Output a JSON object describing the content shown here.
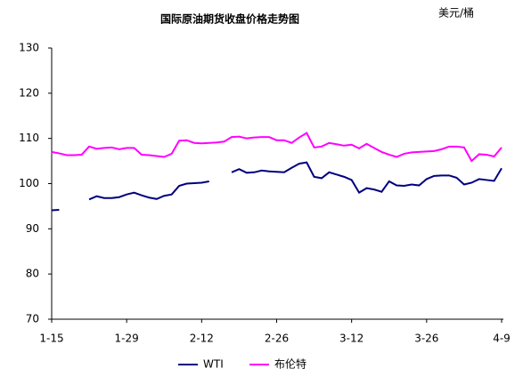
{
  "chart_data": {
    "type": "line",
    "title": "国际原油期货收盘价格走势图",
    "unit": "美元/桶",
    "categories": [
      "1-15",
      null,
      null,
      null,
      null,
      null,
      null,
      null,
      null,
      null,
      "1-29",
      null,
      null,
      null,
      null,
      null,
      null,
      null,
      null,
      null,
      "2-12",
      null,
      null,
      null,
      null,
      null,
      null,
      null,
      null,
      null,
      "2-26",
      null,
      null,
      null,
      null,
      null,
      null,
      null,
      null,
      null,
      "3-12",
      null,
      null,
      null,
      null,
      null,
      null,
      null,
      null,
      null,
      "3-26",
      null,
      null,
      null,
      null,
      null,
      null,
      null,
      null,
      null,
      "4-9"
    ],
    "series": [
      {
        "name": "WTI",
        "color": "#000080",
        "values": [
          94.1,
          94.2,
          null,
          null,
          null,
          96.5,
          97.2,
          96.8,
          96.8,
          97.0,
          97.6,
          98.0,
          97.4,
          96.9,
          96.6,
          97.3,
          97.6,
          99.5,
          100.0,
          100.1,
          100.2,
          100.5,
          null,
          null,
          102.5,
          103.2,
          102.4,
          102.5,
          102.9,
          102.7,
          102.6,
          102.5,
          103.5,
          104.4,
          104.7,
          101.5,
          101.2,
          102.5,
          102.0,
          101.5,
          100.8,
          98.0,
          99.0,
          98.7,
          98.2,
          100.5,
          99.6,
          99.5,
          99.8,
          99.6,
          101.0,
          101.7,
          101.8,
          101.8,
          101.3,
          99.8,
          100.2,
          101.0,
          100.8,
          100.6,
          103.4
        ]
      },
      {
        "name": "布伦特",
        "color": "#ff00ff",
        "values": [
          107.0,
          106.7,
          106.3,
          106.3,
          106.4,
          108.2,
          107.7,
          107.9,
          108.0,
          107.6,
          107.9,
          107.9,
          106.4,
          106.3,
          106.1,
          105.9,
          106.6,
          109.5,
          109.6,
          109.0,
          108.9,
          109.0,
          109.1,
          109.3,
          110.3,
          110.4,
          110.0,
          110.2,
          110.3,
          110.3,
          109.6,
          109.6,
          109.0,
          110.2,
          111.2,
          108.0,
          108.2,
          109.0,
          108.7,
          108.4,
          108.6,
          107.8,
          108.8,
          107.9,
          107.0,
          106.4,
          105.9,
          106.6,
          106.9,
          107.0,
          107.1,
          107.2,
          107.6,
          108.2,
          108.2,
          108.0,
          105.0,
          106.5,
          106.4,
          106.0,
          108.0
        ]
      }
    ],
    "ylim": [
      70,
      130
    ],
    "yticks": [
      70,
      80,
      90,
      100,
      110,
      120,
      130
    ],
    "grid": false,
    "legend": "bottom"
  }
}
